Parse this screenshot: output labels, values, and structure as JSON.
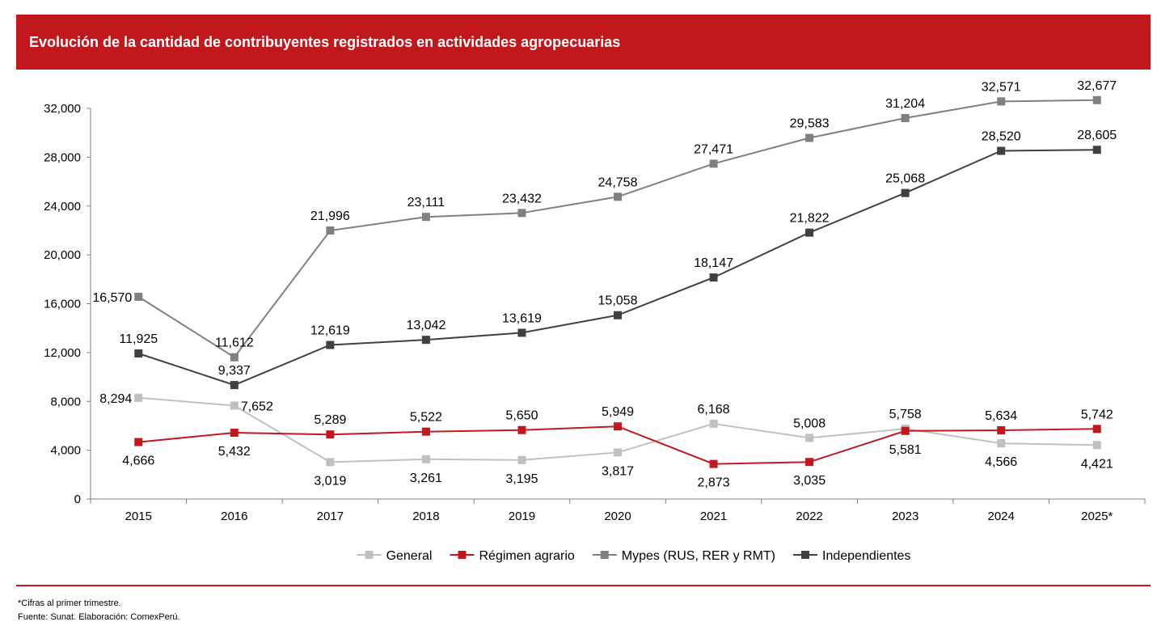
{
  "header": {
    "title": "Evolución de la cantidad de contribuyentes registrados en actividades agropecuarias"
  },
  "chart_data": {
    "type": "line",
    "title": "Evolución de la cantidad de contribuyentes registrados en actividades agropecuarias",
    "xlabel": "",
    "ylabel": "",
    "categories": [
      "2015",
      "2016",
      "2017",
      "2018",
      "2019",
      "2020",
      "2021",
      "2022",
      "2023",
      "2024",
      "2025*"
    ],
    "ylim": [
      0,
      32000
    ],
    "yticks": [
      0,
      4000,
      8000,
      12000,
      16000,
      20000,
      24000,
      28000,
      32000
    ],
    "ytick_labels": [
      "0",
      "4,000",
      "8,000",
      "12,000",
      "16,000",
      "20,000",
      "24,000",
      "28,000",
      "32,000"
    ],
    "grid": false,
    "legend_position": "bottom",
    "series": [
      {
        "name": "General",
        "color": "#c0c0c0",
        "values": [
          8294,
          7652,
          3019,
          3261,
          3195,
          3817,
          6168,
          5008,
          5758,
          4566,
          4421
        ],
        "labels": [
          "8,294",
          "7,652",
          "3,019",
          "3,261",
          "3,195",
          "3,817",
          "6,168",
          "5,008",
          "5,758",
          "4,566",
          "4,421"
        ],
        "label_side": [
          "left",
          "right",
          "below",
          "below",
          "below",
          "below",
          "above",
          "above",
          "above",
          "below",
          "below"
        ]
      },
      {
        "name": "Régimen agrario",
        "color": "#c0181d",
        "values": [
          4666,
          5432,
          5289,
          5522,
          5650,
          5949,
          2873,
          3035,
          5581,
          5634,
          5742
        ],
        "labels": [
          "4,666",
          "5,432",
          "5,289",
          "5,522",
          "5,650",
          "5,949",
          "2,873",
          "3,035",
          "5,581",
          "5,634",
          "5,742"
        ],
        "label_side": [
          "below",
          "below",
          "above",
          "above",
          "above",
          "above",
          "below",
          "below",
          "below",
          "above",
          "above"
        ]
      },
      {
        "name": "Mypes (RUS, RER y RMT)",
        "color": "#808080",
        "values": [
          16570,
          11612,
          21996,
          23111,
          23432,
          24758,
          27471,
          29583,
          31204,
          32571,
          32677
        ],
        "labels": [
          "16,570",
          "11,612",
          "21,996",
          "23,111",
          "23,432",
          "24,758",
          "27,471",
          "29,583",
          "31,204",
          "32,571",
          "32,677"
        ],
        "label_side": [
          "left",
          "above",
          "above",
          "above",
          "above",
          "above",
          "above",
          "above",
          "above",
          "above",
          "above"
        ]
      },
      {
        "name": "Independientes",
        "color": "#404040",
        "values": [
          11925,
          9337,
          12619,
          13042,
          13619,
          15058,
          18147,
          21822,
          25068,
          28520,
          28605
        ],
        "labels": [
          "11,925",
          "9,337",
          "12,619",
          "13,042",
          "13,619",
          "15,058",
          "18,147",
          "21,822",
          "25,068",
          "28,520",
          "28,605"
        ],
        "label_side": [
          "above",
          "above",
          "above",
          "above",
          "above",
          "above",
          "above",
          "above",
          "above",
          "above",
          "above"
        ]
      }
    ]
  },
  "footnotes": {
    "note": "*Cifras al primer trimestre.",
    "source": "Fuente: Sunat. Elaboración: ComexPerú."
  }
}
